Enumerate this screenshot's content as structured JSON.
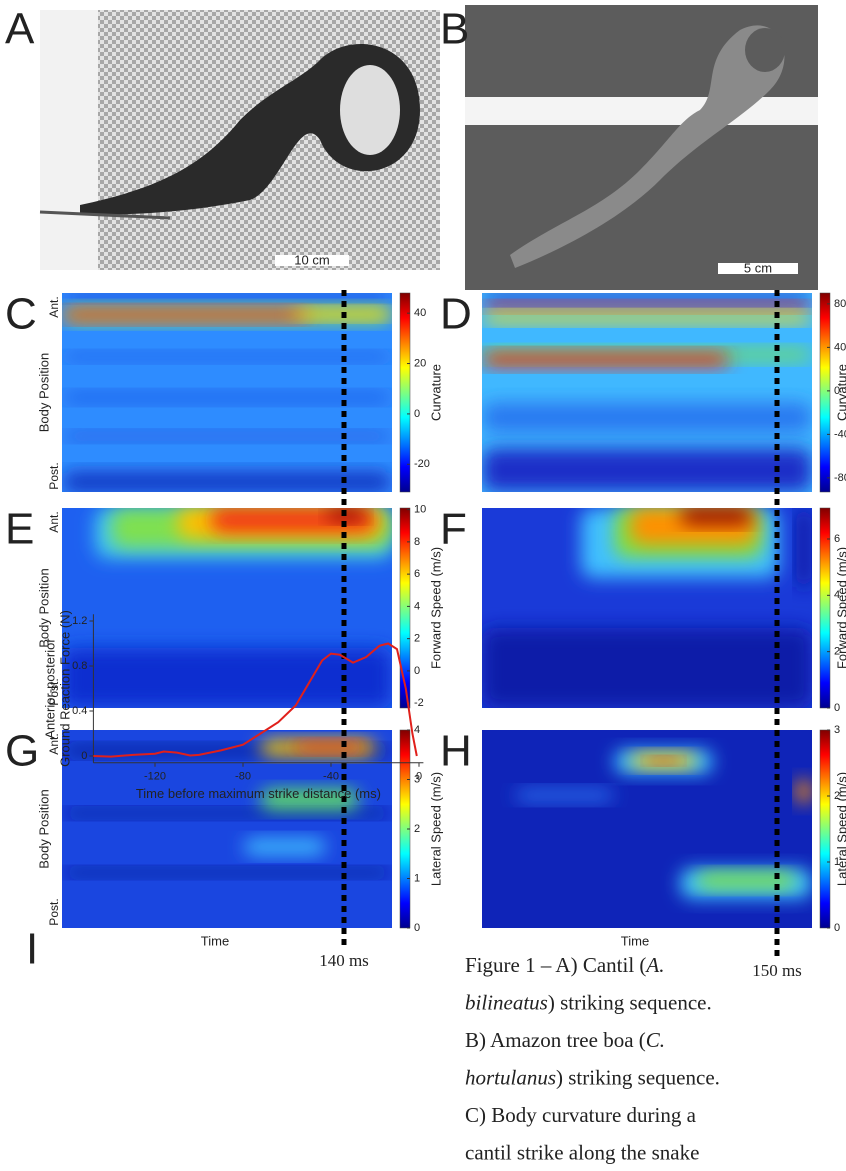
{
  "photos": [
    {
      "letter": "A",
      "scale_bar": "10 cm"
    },
    {
      "letter": "B",
      "scale_bar": "5 cm"
    }
  ],
  "heatmaps": [
    {
      "letter": "C",
      "y_label": "Body Position",
      "y_top": "Ant.",
      "y_bottom": "Post.",
      "colorbar_label": "Curvature",
      "colorbar_lim": [
        -31,
        48
      ],
      "colorbar_ticks": [
        40,
        20,
        0,
        -20
      ]
    },
    {
      "letter": "D",
      "colorbar_label": "Curvature",
      "colorbar_lim": [
        -93,
        90
      ],
      "colorbar_ticks": [
        80,
        40,
        0,
        -40,
        -80
      ]
    },
    {
      "letter": "E",
      "y_label": "Body Position",
      "y_top": "Ant.",
      "y_bottom": "Post.",
      "colorbar_label": "Forward Speed (m/s)",
      "colorbar_lim": [
        -2.3,
        10.1
      ],
      "colorbar_ticks": [
        10,
        8,
        6,
        4,
        2,
        0,
        -2
      ]
    },
    {
      "letter": "F",
      "colorbar_label": "Forward Speed (m/s)",
      "colorbar_lim": [
        0,
        7.1
      ],
      "colorbar_ticks": [
        6,
        4,
        2,
        0
      ]
    },
    {
      "letter": "G",
      "y_label": "Body Position",
      "y_top": "Ant.",
      "y_bottom": "Post.",
      "x_label": "Time",
      "colorbar_label": "Lateral Speed (m/s)",
      "colorbar_lim": [
        0,
        4
      ],
      "colorbar_ticks": [
        4,
        3,
        2,
        1,
        0
      ]
    },
    {
      "letter": "H",
      "x_label": "Time",
      "colorbar_label": "Lateral Speed (m/s)",
      "colorbar_lim": [
        0,
        3
      ],
      "colorbar_ticks": [
        3,
        2,
        1,
        0
      ]
    }
  ],
  "markers": [
    {
      "label": "140 ms"
    },
    {
      "label": "150 ms"
    }
  ],
  "chart_data": {
    "type": "line",
    "letter": "I",
    "y_label": [
      "Anterior-posterior",
      "Ground Reaction Force (N)"
    ],
    "x_label": "Time before maximum strike distance (ms)",
    "x": [
      -148,
      -140,
      -130,
      -120,
      -116,
      -110,
      -104,
      -100,
      -90,
      -80,
      -72,
      -64,
      -56,
      -50,
      -44,
      -40,
      -36,
      -30,
      -24,
      -18,
      -14,
      -10,
      -6,
      -3,
      -1
    ],
    "series": [
      {
        "color": "#e0201b",
        "values": [
          0,
          -0.005,
          0.01,
          0.02,
          0.04,
          0.03,
          0.005,
          0.01,
          0.05,
          0.1,
          0.2,
          0.3,
          0.45,
          0.65,
          0.85,
          0.91,
          0.9,
          0.83,
          0.88,
          0.98,
          1.0,
          0.95,
          0.6,
          0.2,
          0
        ]
      }
    ],
    "xlim": [
      -148,
      2
    ],
    "ylim": [
      -0.06,
      1.26
    ],
    "xticks": [
      -120,
      -80,
      -40,
      0
    ],
    "yticks": [
      0,
      0.4,
      0.8,
      1.2
    ]
  },
  "caption": {
    "lines": [
      [
        {
          "text": "Figure 1  – A) Cantil ("
        },
        {
          "text": "A.",
          "italic": true
        }
      ],
      [
        {
          "text": "bilineatus",
          "italic": true
        },
        {
          "text": ") striking sequence."
        }
      ],
      [
        {
          "text": "B) Amazon tree boa ("
        },
        {
          "text": "C.",
          "italic": true
        }
      ],
      [
        {
          "text": "hortulanus",
          "italic": true
        },
        {
          "text": ") striking sequence."
        }
      ],
      [
        {
          "text": "C) Body curvature during a"
        }
      ],
      [
        {
          "text": "cantil strike along the snake"
        }
      ]
    ]
  }
}
